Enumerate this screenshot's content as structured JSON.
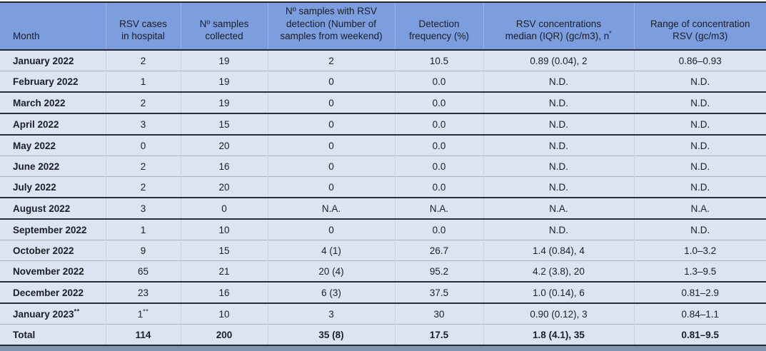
{
  "colors": {
    "header_bg": "#7C9EDE",
    "row_bg": "#DCE4F3",
    "rule_dark": "#24282E",
    "rule_light": "#A9B2C2",
    "column_divider_header": "#9CB4E6",
    "column_divider_body": "#C9D2E3",
    "bottom_band": "#8194B2",
    "text": "#1B1E24"
  },
  "table": {
    "header": [
      {
        "lines": [
          "Month"
        ]
      },
      {
        "lines": [
          "RSV cases",
          "in hospital"
        ]
      },
      {
        "lines": [
          "Nº samples",
          "collected"
        ]
      },
      {
        "lines": [
          "Nº samples with RSV",
          "detection (Number of",
          "samples from weekend)"
        ]
      },
      {
        "lines": [
          "Detection",
          "frequency (%)"
        ]
      },
      {
        "lines": [
          "RSV concentrations",
          "median (IQR) (gc/m3), n"
        ],
        "sup": "*"
      },
      {
        "lines": [
          "Range of concentration",
          "RSV (gc/m3)"
        ]
      }
    ],
    "rows": [
      {
        "month": "January 2022",
        "cases": "2",
        "collected": "19",
        "detection": "2",
        "frequency": "10.5",
        "concentration": "0.89 (0.04), 2",
        "range": "0.86–0.93"
      },
      {
        "month": "February 2022",
        "cases": "1",
        "collected": "19",
        "detection": "0",
        "frequency": "0.0",
        "concentration": "N.D.",
        "range": "N.D."
      },
      {
        "month": "March 2022",
        "cases": "2",
        "collected": "19",
        "detection": "0",
        "frequency": "0.0",
        "concentration": "N.D.",
        "range": "N.D."
      },
      {
        "month": "April 2022",
        "cases": "3",
        "collected": "15",
        "detection": "0",
        "frequency": "0.0",
        "concentration": "N.D.",
        "range": "N.D."
      },
      {
        "month": "May 2022",
        "cases": "0",
        "collected": "20",
        "detection": "0",
        "frequency": "0.0",
        "concentration": "N.D.",
        "range": "N.D."
      },
      {
        "month": "June 2022",
        "cases": "2",
        "collected": "16",
        "detection": "0",
        "frequency": "0.0",
        "concentration": "N.D.",
        "range": "N.D."
      },
      {
        "month": "July 2022",
        "cases": "2",
        "collected": "20",
        "detection": "0",
        "frequency": "0.0",
        "concentration": "N.D.",
        "range": "N.D."
      },
      {
        "month": "August 2022",
        "cases": "3",
        "collected": "0",
        "detection": "N.A.",
        "frequency": "N.A.",
        "concentration": "N.A.",
        "range": "N.A."
      },
      {
        "month": "September 2022",
        "cases": "1",
        "collected": "10",
        "detection": "0",
        "frequency": "0.0",
        "concentration": "N.D.",
        "range": "N.D."
      },
      {
        "month": "October 2022",
        "cases": "9",
        "collected": "15",
        "detection": "4 (1)",
        "frequency": "26.7",
        "concentration": "1.4 (0.84), 4",
        "range": "1.0–3.2"
      },
      {
        "month": "November 2022",
        "cases": "65",
        "collected": "21",
        "detection": "20 (4)",
        "frequency": "95.2",
        "concentration": "4.2 (3.8), 20",
        "range": "1.3–9.5"
      },
      {
        "month": "December 2022",
        "cases": "23",
        "collected": "16",
        "detection": "6 (3)",
        "frequency": "37.5",
        "concentration": "1.0 (0.14), 6",
        "range": "0.81–2.9"
      },
      {
        "month": "January 2023",
        "month_sup": "**",
        "cases": "1",
        "cases_sup": "**",
        "collected": "10",
        "detection": "3",
        "frequency": "30",
        "concentration": "0.90 (0.12), 3",
        "range": "0.84–1.1"
      },
      {
        "month": "Total",
        "cases": "114",
        "collected": "200",
        "detection": "35 (8)",
        "frequency": "17.5",
        "concentration": "1.8 (4.1), 35",
        "range": "0.81–9.5"
      }
    ]
  }
}
